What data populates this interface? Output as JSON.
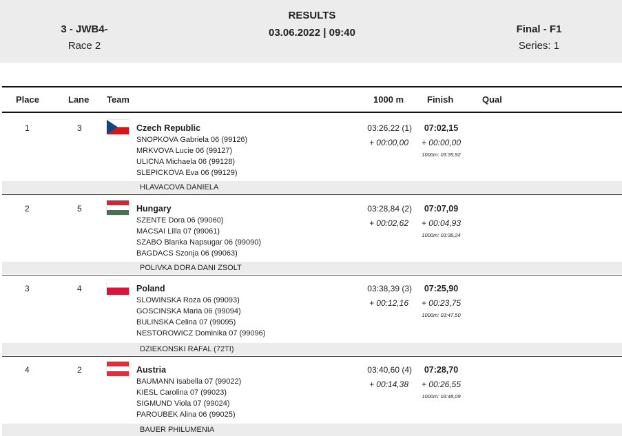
{
  "header": {
    "event": "3 - JWB4-",
    "race": "Race 2",
    "title": "RESULTS",
    "datetime": "03.06.2022 | 09:40",
    "phase": "Final - F1",
    "series": "Series: 1"
  },
  "columns": {
    "place": "Place",
    "lane": "Lane",
    "team": "Team",
    "split": "1000 m",
    "finish": "Finish",
    "qual": "Qual"
  },
  "entries": [
    {
      "place": "1",
      "lane": "3",
      "country": "Czech Republic",
      "flag": "czech-flag",
      "rowers": [
        "SNOPKOVA  Gabriela 06 (99126)",
        "MRKVOVA  Lucie 06 (99127)",
        "ULICNA  Michaela 06 (99128)",
        "SLEPICKOVA  Eva 06 (99129)"
      ],
      "split": "03:26,22 (1)",
      "split_diff": "+ 00:00,00",
      "finish": "07:02,15",
      "finish_diff": "+ 00:00,00",
      "finish_note": "1000m: 03:35,92",
      "coach": "HLAVACOVA DANIELA"
    },
    {
      "place": "2",
      "lane": "5",
      "country": "Hungary",
      "flag": "hungary-flag",
      "rowers": [
        "SZENTE  Dora 06 (99060)",
        "MACSAI  Lilla 07 (99061)",
        "SZABO  Blanka Napsugar 06 (99090)",
        "BAGDACS  Szonja 06 (99063)"
      ],
      "split": "03:28,84 (2)",
      "split_diff": "+ 00:02,62",
      "finish": "07:07,09",
      "finish_diff": "+ 00:04,93",
      "finish_note": "1000m: 03:38,24",
      "coach": "POLIVKA DORA DANI ZSOLT"
    },
    {
      "place": "3",
      "lane": "4",
      "country": "Poland",
      "flag": "poland-flag",
      "rowers": [
        "SLOWINSKA  Roza 06 (99093)",
        "GOSCINSKA  Maria 06 (99094)",
        "BULINSKA  Celina 07 (99095)",
        "NESTOROWICZ  Dominika 07 (99096)"
      ],
      "split": "03:38,39 (3)",
      "split_diff": "+ 00:12,16",
      "finish": "07:25,90",
      "finish_diff": "+ 00:23,75",
      "finish_note": "1000m: 03:47,50",
      "coach": "DZIEKONSKI RAFAL (72TI)"
    },
    {
      "place": "4",
      "lane": "2",
      "country": "Austria",
      "flag": "austria-flag",
      "rowers": [
        "BAUMANN  Isabella 07 (99022)",
        "KIESL  Carolina 07 (99023)",
        "SIGMUND  Viola 07 (99024)",
        "PAROUBEK  Alina 06 (99025)"
      ],
      "split": "03:40,60 (4)",
      "split_diff": "+ 00:14,38",
      "finish": "07:28,70",
      "finish_diff": "+ 00:26,55",
      "finish_note": "1000m: 03:48,09",
      "coach": "BAUER PHILUMENIA"
    }
  ]
}
